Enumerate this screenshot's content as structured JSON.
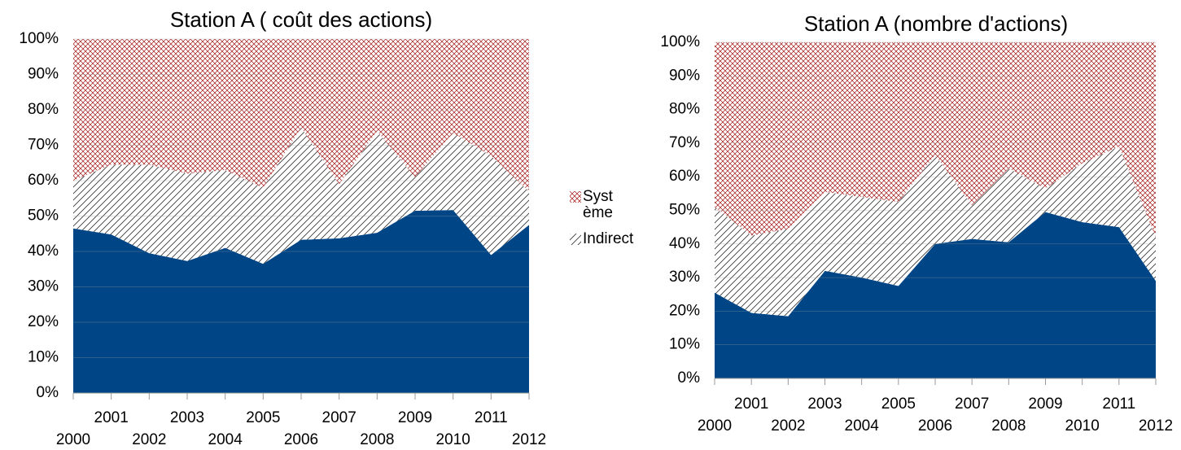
{
  "chart_data": [
    {
      "type": "area",
      "stacked": true,
      "title": "Station A  ( coût des actions)",
      "categories": [
        "2000",
        "2001",
        "2002",
        "2003",
        "2004",
        "2005",
        "2006",
        "2007",
        "2008",
        "2009",
        "2010",
        "2011",
        "2012"
      ],
      "series": [
        {
          "color": "#004586",
          "values": [
            46.5,
            44.8,
            39.5,
            37.3,
            41,
            36.5,
            43.3,
            43.7,
            45.3,
            51.5,
            51.7,
            39,
            47.5
          ]
        },
        {
          "name": "Indirect",
          "color": "#333333",
          "values": [
            13.5,
            19.7,
            25,
            24.7,
            22,
            21.5,
            31.7,
            15.3,
            28.7,
            9.5,
            21.8,
            28,
            9.5
          ]
        },
        {
          "name": "Système",
          "color": "#a31515",
          "values": [
            40,
            35.5,
            35.5,
            38,
            37,
            42,
            25,
            41,
            26,
            39,
            26.5,
            33,
            43
          ]
        }
      ],
      "ylim": [
        0,
        100
      ],
      "yticks": [
        {
          "value": 0,
          "label": "0%"
        },
        {
          "value": 10,
          "label": "10%"
        },
        {
          "value": 20,
          "label": "20%"
        },
        {
          "value": 30,
          "label": "30%"
        },
        {
          "value": 40,
          "label": "40%"
        },
        {
          "value": 50,
          "label": "50%"
        },
        {
          "value": 60,
          "label": "60%"
        },
        {
          "value": 70,
          "label": "70%"
        },
        {
          "value": 80,
          "label": "80%"
        },
        {
          "value": 90,
          "label": "90%"
        },
        {
          "value": 100,
          "label": "100%"
        }
      ],
      "grid": true
    },
    {
      "type": "area",
      "stacked": true,
      "title": "Station A  (nombre d'actions)",
      "categories": [
        "2000",
        "2001",
        "2002",
        "2003",
        "2004",
        "2005",
        "2006",
        "2007",
        "2008",
        "2009",
        "2010",
        "2011",
        "2012"
      ],
      "series": [
        {
          "color": "#004586",
          "values": [
            25.5,
            19.5,
            18.5,
            32,
            30,
            27.5,
            40,
            41.5,
            40.5,
            49.5,
            46.5,
            45,
            29
          ]
        },
        {
          "color": "#333333",
          "values": [
            25.5,
            23,
            26,
            23.5,
            24,
            25,
            26.5,
            10,
            22,
            7,
            17.5,
            24,
            13
          ]
        },
        {
          "color": "#a31515",
          "values": [
            49,
            57.5,
            55.5,
            44.5,
            46,
            47.5,
            33.5,
            48.5,
            37.5,
            43.5,
            36,
            31,
            58
          ]
        }
      ],
      "ylim": [
        0,
        100
      ],
      "yticks": [
        {
          "value": 0,
          "label": "0%"
        },
        {
          "value": 10,
          "label": "10%"
        },
        {
          "value": 20,
          "label": "20%"
        },
        {
          "value": 30,
          "label": "30%"
        },
        {
          "value": 40,
          "label": "40%"
        },
        {
          "value": 50,
          "label": "50%"
        },
        {
          "value": 60,
          "label": "60%"
        },
        {
          "value": 70,
          "label": "70%"
        },
        {
          "value": 80,
          "label": "80%"
        },
        {
          "value": 90,
          "label": "90%"
        },
        {
          "value": 100,
          "label": "100%"
        }
      ],
      "grid": true
    }
  ]
}
